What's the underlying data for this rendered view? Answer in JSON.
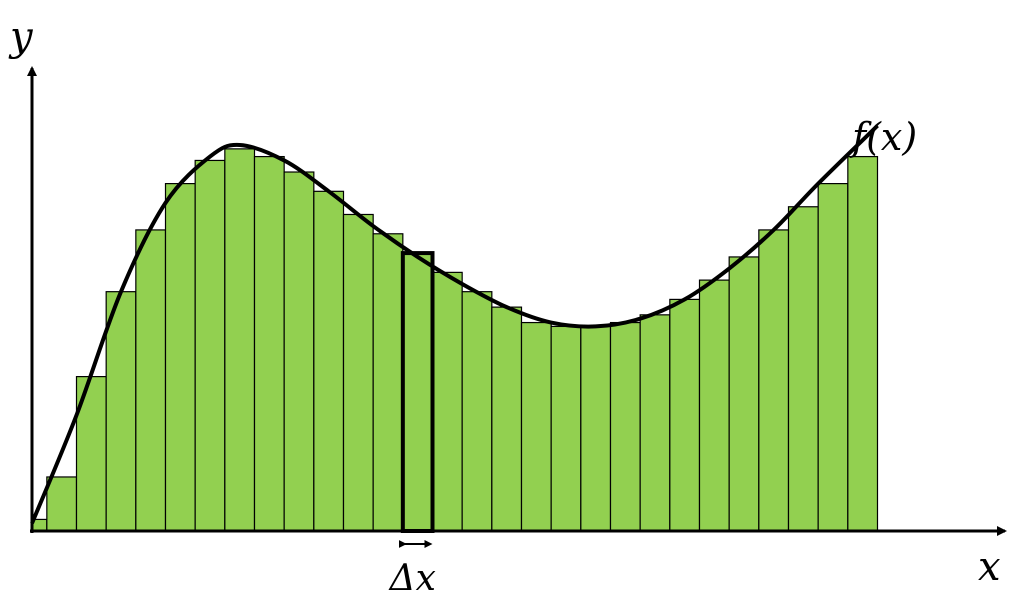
{
  "labels": {
    "y_axis": "y",
    "x_axis": "x",
    "function": "f(x)",
    "delta": "Δx"
  },
  "colors": {
    "bar_fill": "#92D050",
    "bar_stroke": "#000000",
    "curve": "#000000",
    "axis": "#000000",
    "highlight_stroke": "#000000"
  },
  "chart_data": {
    "type": "bar",
    "description_free": true,
    "x_domain": [
      0,
      30
    ],
    "y_domain": [
      0,
      1
    ],
    "bar_count": 29,
    "bar_width": 1,
    "bars": [
      {
        "x": 0.0,
        "h": 0.03,
        "w": 0.5
      },
      {
        "x": 0.5,
        "h": 0.14
      },
      {
        "x": 1.5,
        "h": 0.4
      },
      {
        "x": 2.5,
        "h": 0.62
      },
      {
        "x": 3.5,
        "h": 0.78
      },
      {
        "x": 4.5,
        "h": 0.9
      },
      {
        "x": 5.5,
        "h": 0.96
      },
      {
        "x": 6.5,
        "h": 0.99
      },
      {
        "x": 7.5,
        "h": 0.97
      },
      {
        "x": 8.5,
        "h": 0.93
      },
      {
        "x": 9.5,
        "h": 0.88
      },
      {
        "x": 10.5,
        "h": 0.82
      },
      {
        "x": 11.5,
        "h": 0.77
      },
      {
        "x": 12.5,
        "h": 0.72
      },
      {
        "x": 13.5,
        "h": 0.67
      },
      {
        "x": 14.5,
        "h": 0.62
      },
      {
        "x": 15.5,
        "h": 0.58
      },
      {
        "x": 16.5,
        "h": 0.54
      },
      {
        "x": 17.5,
        "h": 0.53
      },
      {
        "x": 18.5,
        "h": 0.53
      },
      {
        "x": 19.5,
        "h": 0.54
      },
      {
        "x": 20.5,
        "h": 0.56
      },
      {
        "x": 21.5,
        "h": 0.6
      },
      {
        "x": 22.5,
        "h": 0.65
      },
      {
        "x": 23.5,
        "h": 0.71
      },
      {
        "x": 24.5,
        "h": 0.78
      },
      {
        "x": 25.5,
        "h": 0.84
      },
      {
        "x": 26.5,
        "h": 0.9
      },
      {
        "x": 27.5,
        "h": 0.97
      }
    ],
    "highlight_index": 13,
    "curve_points": [
      [
        0.0,
        0.02
      ],
      [
        1.5,
        0.3
      ],
      [
        3.0,
        0.62
      ],
      [
        4.5,
        0.85
      ],
      [
        6.0,
        0.97
      ],
      [
        7.0,
        1.0
      ],
      [
        8.5,
        0.96
      ],
      [
        10.0,
        0.88
      ],
      [
        11.5,
        0.79
      ],
      [
        13.0,
        0.71
      ],
      [
        14.5,
        0.64
      ],
      [
        16.0,
        0.58
      ],
      [
        17.5,
        0.54
      ],
      [
        19.0,
        0.53
      ],
      [
        20.5,
        0.55
      ],
      [
        22.0,
        0.6
      ],
      [
        23.5,
        0.68
      ],
      [
        25.0,
        0.78
      ],
      [
        26.5,
        0.9
      ],
      [
        28.5,
        1.05
      ]
    ]
  }
}
